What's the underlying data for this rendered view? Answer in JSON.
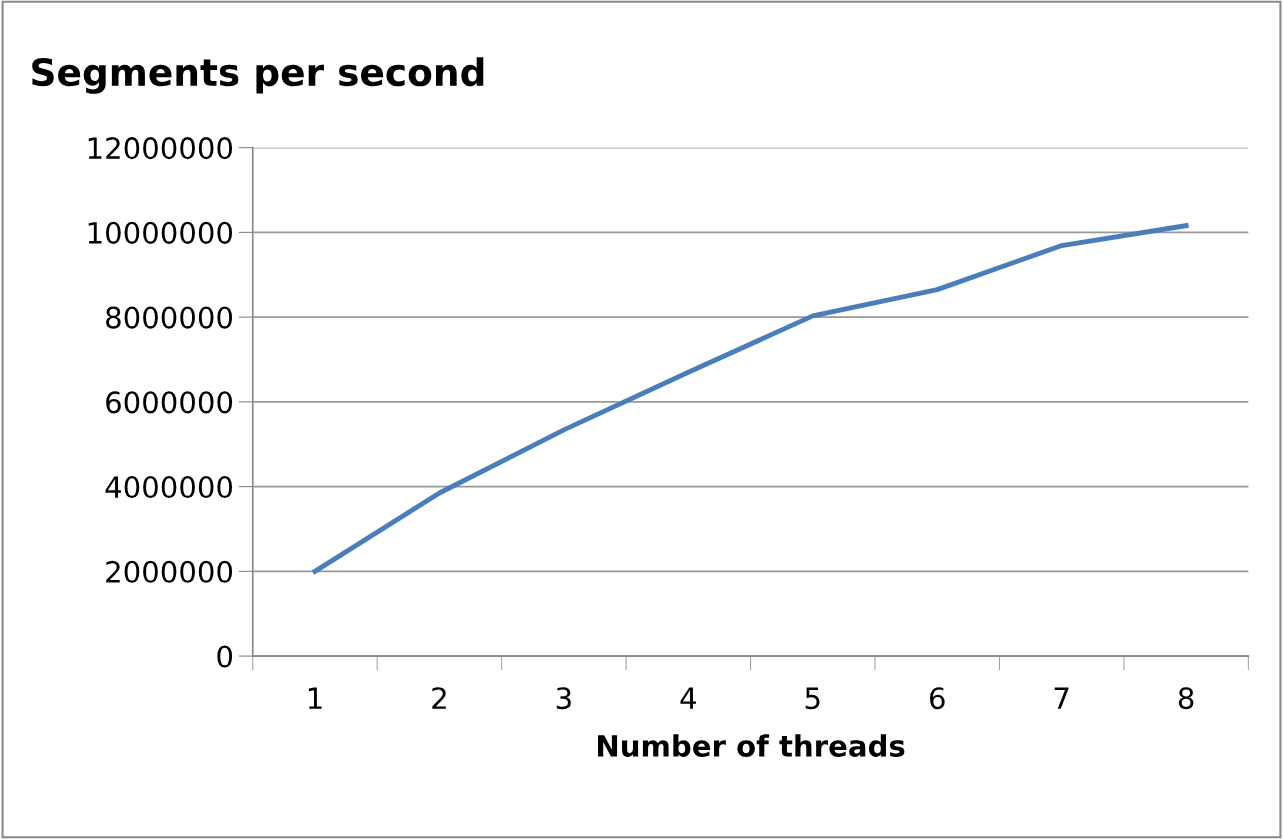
{
  "chart_data": {
    "type": "line",
    "title": "Segments per second",
    "xlabel": "Number of threads",
    "categories": [
      "1",
      "2",
      "3",
      "4",
      "5",
      "6",
      "7",
      "8"
    ],
    "series": [
      {
        "color": "#4a7ebb",
        "values": [
          2000000,
          3850000,
          5340000,
          6700000,
          8030000,
          8650000,
          9690000,
          10160000
        ]
      }
    ],
    "ylim": [
      0,
      12000000
    ],
    "yticks": [
      0,
      2000000,
      4000000,
      6000000,
      8000000,
      10000000,
      12000000
    ],
    "grid": "y",
    "legend": false,
    "marker": "none",
    "line_style": "solid"
  }
}
